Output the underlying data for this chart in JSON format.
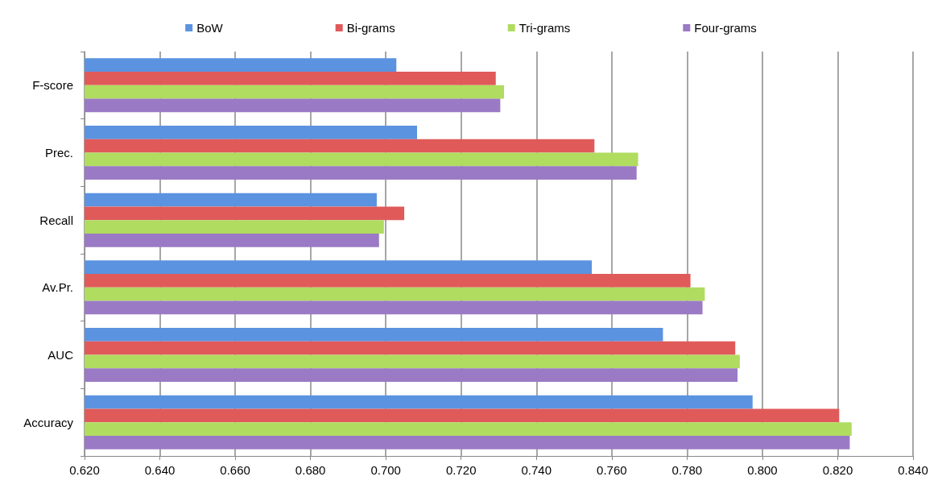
{
  "chart_data": {
    "type": "bar",
    "orientation": "horizontal",
    "categories": [
      "F-score",
      "Prec.",
      "Recall",
      "Av.Pr.",
      "AUC",
      "Accuracy"
    ],
    "series": [
      {
        "name": "BoW",
        "color": "#5b93e0",
        "values": [
          0.7028,
          0.7083,
          0.6976,
          0.7547,
          0.7736,
          0.7974
        ]
      },
      {
        "name": "Bi-grams",
        "color": "#e05a5a",
        "values": [
          0.7292,
          0.7554,
          0.7049,
          0.7809,
          0.7928,
          0.8204
        ]
      },
      {
        "name": "Tri-grams",
        "color": "#b0dc60",
        "values": [
          0.7314,
          0.767,
          0.6995,
          0.7847,
          0.794,
          0.8237
        ]
      },
      {
        "name": "Four-grams",
        "color": "#9a7ac4",
        "values": [
          0.7304,
          0.7666,
          0.6982,
          0.7841,
          0.7934,
          0.8232
        ]
      }
    ],
    "xlim": [
      0.62,
      0.84
    ],
    "xticks": [
      {
        "value": 0.62,
        "label": "0.620"
      },
      {
        "value": 0.64,
        "label": "0.640"
      },
      {
        "value": 0.66,
        "label": "0.660"
      },
      {
        "value": 0.68,
        "label": "0.680"
      },
      {
        "value": 0.7,
        "label": "0.700"
      },
      {
        "value": 0.72,
        "label": "0.720"
      },
      {
        "value": 0.74,
        "label": "0.740"
      },
      {
        "value": 0.76,
        "label": "0.760"
      },
      {
        "value": 0.78,
        "label": "0.780"
      },
      {
        "value": 0.8,
        "label": "0.800"
      },
      {
        "value": 0.82,
        "label": "0.820"
      },
      {
        "value": 0.84,
        "label": "0.840"
      }
    ],
    "grid": "x",
    "legend": "top"
  }
}
